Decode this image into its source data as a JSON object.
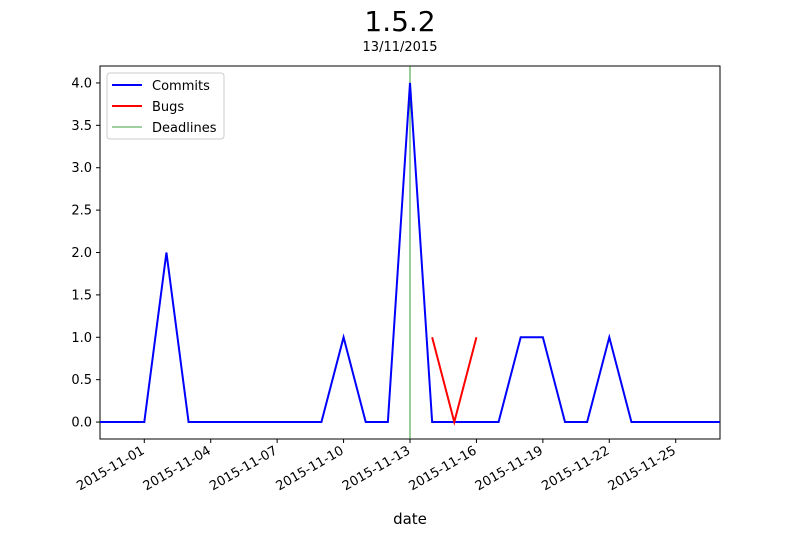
{
  "title": "1.5.2",
  "subtitle": "13/11/2015",
  "colors": {
    "commits": "#0000ff",
    "bugs": "#ff0000",
    "deadlines": "#008000"
  },
  "chart_data": {
    "type": "line",
    "title": "1.5.2",
    "subtitle": "13/11/2015",
    "xlabel": "date",
    "ylabel": "",
    "x_range": [
      "2015-10-30",
      "2015-11-27"
    ],
    "ylim": [
      -0.2,
      4.2
    ],
    "grid": false,
    "legend_position": "top-left",
    "x_ticks": [
      "2015-11-01",
      "2015-11-04",
      "2015-11-07",
      "2015-11-10",
      "2015-11-13",
      "2015-11-16",
      "2015-11-19",
      "2015-11-22",
      "2015-11-25"
    ],
    "y_ticks": [
      "0.0",
      "0.5",
      "1.0",
      "1.5",
      "2.0",
      "2.5",
      "3.0",
      "3.5",
      "4.0"
    ],
    "series": [
      {
        "name": "Commits",
        "x": [
          "2015-10-30",
          "2015-10-31",
          "2015-11-01",
          "2015-11-02",
          "2015-11-03",
          "2015-11-04",
          "2015-11-05",
          "2015-11-06",
          "2015-11-07",
          "2015-11-08",
          "2015-11-09",
          "2015-11-10",
          "2015-11-11",
          "2015-11-12",
          "2015-11-13",
          "2015-11-14",
          "2015-11-15",
          "2015-11-16",
          "2015-11-17",
          "2015-11-18",
          "2015-11-19",
          "2015-11-20",
          "2015-11-21",
          "2015-11-22",
          "2015-11-23",
          "2015-11-24",
          "2015-11-25",
          "2015-11-26",
          "2015-11-27"
        ],
        "y": [
          0,
          0,
          0,
          2,
          0,
          0,
          0,
          0,
          0,
          0,
          0,
          1,
          0,
          0,
          4,
          0,
          0,
          0,
          0,
          1,
          1,
          0,
          0,
          1,
          0,
          0,
          0,
          0,
          0
        ]
      },
      {
        "name": "Bugs",
        "x": [
          "2015-11-14",
          "2015-11-15",
          "2015-11-16"
        ],
        "y": [
          1,
          0,
          1
        ]
      },
      {
        "name": "Deadlines",
        "x": [
          "2015-11-13"
        ],
        "type": "vline"
      }
    ]
  }
}
